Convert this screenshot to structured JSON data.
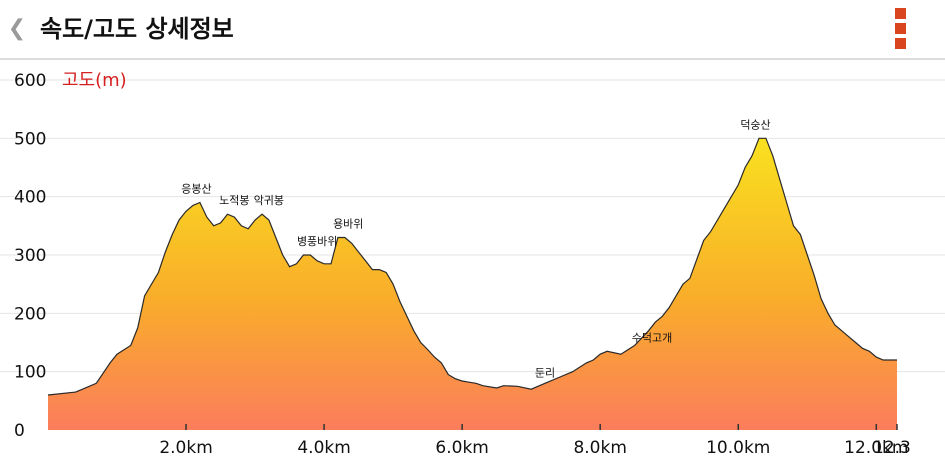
{
  "header": {
    "back_glyph": "❮",
    "title": "속도/고도 상세정보",
    "menu_icon": "more-vert-icon"
  },
  "colors": {
    "accent": "#d9451f",
    "gradient_top": "#f9e11f",
    "gradient_bottom": "#fb7d5c",
    "ylabel": "#d62020"
  },
  "chart_data": {
    "type": "area",
    "ylabel": "고도(m)",
    "xlabel": "",
    "ylim": [
      0,
      600
    ],
    "xlim": [
      0,
      12.3
    ],
    "y_ticks": [
      "600",
      "500",
      "400",
      "300",
      "200",
      "100",
      "0"
    ],
    "y_tick_values": [
      600,
      500,
      400,
      300,
      200,
      100,
      0
    ],
    "x_ticks": [
      "2.0km",
      "4.0km",
      "6.0km",
      "8.0km",
      "10.0km",
      "12.0km",
      "12.3"
    ],
    "x_tick_values": [
      2,
      4,
      6,
      8,
      10,
      12,
      12.3
    ],
    "grid": true,
    "series": [
      {
        "x": [
          0,
          0.4,
          0.5,
          0.7,
          0.9,
          1.0,
          1.2,
          1.3,
          1.4,
          1.6,
          1.7,
          1.8,
          1.9,
          2.0,
          2.1,
          2.2,
          2.3,
          2.4,
          2.5,
          2.6,
          2.7,
          2.8,
          2.9,
          3.0,
          3.1,
          3.2,
          3.3,
          3.4,
          3.5,
          3.6,
          3.7,
          3.8,
          3.9,
          4.0,
          4.1,
          4.2,
          4.3,
          4.4,
          4.5,
          4.6,
          4.7,
          4.8,
          4.9,
          5.0,
          5.1,
          5.2,
          5.3,
          5.4,
          5.5,
          5.6,
          5.7,
          5.8,
          5.9,
          6.0,
          6.1,
          6.2,
          6.3,
          6.5,
          6.6,
          6.8,
          7.0,
          7.2,
          7.4,
          7.6,
          7.8,
          7.9,
          8.0,
          8.1,
          8.3,
          8.5,
          8.7,
          8.8,
          8.9,
          9.0,
          9.1,
          9.2,
          9.3,
          9.5,
          9.6,
          9.7,
          9.8,
          9.9,
          10.0,
          10.1,
          10.2,
          10.3,
          10.4,
          10.5,
          10.6,
          10.7,
          10.8,
          10.9,
          11.0,
          11.1,
          11.2,
          11.3,
          11.4,
          11.5,
          11.6,
          11.7,
          11.8,
          11.9,
          12.0,
          12.1,
          12.2,
          12.3
        ],
        "values": [
          60,
          65,
          70,
          80,
          115,
          130,
          145,
          175,
          230,
          270,
          305,
          335,
          360,
          375,
          385,
          390,
          365,
          350,
          355,
          370,
          365,
          350,
          345,
          360,
          370,
          360,
          330,
          300,
          280,
          285,
          300,
          300,
          290,
          285,
          285,
          330,
          330,
          320,
          305,
          290,
          275,
          275,
          270,
          250,
          220,
          195,
          170,
          150,
          138,
          125,
          115,
          95,
          88,
          84,
          82,
          80,
          76,
          72,
          76,
          75,
          70,
          80,
          90,
          100,
          115,
          120,
          130,
          135,
          130,
          145,
          170,
          185,
          195,
          210,
          230,
          250,
          260,
          325,
          340,
          360,
          380,
          400,
          420,
          450,
          470,
          500,
          500,
          470,
          430,
          390,
          350,
          335,
          300,
          265,
          225,
          200,
          180,
          170,
          160,
          150,
          140,
          135,
          125,
          120,
          120,
          120
        ]
      }
    ],
    "annotations": [
      {
        "text": "응봉산",
        "x": 2.15,
        "y": 390
      },
      {
        "text": "노적봉",
        "x": 2.7,
        "y": 370
      },
      {
        "text": "악귀봉",
        "x": 3.2,
        "y": 370
      },
      {
        "text": "병풍바위",
        "x": 3.9,
        "y": 300
      },
      {
        "text": "용바위",
        "x": 4.35,
        "y": 330
      },
      {
        "text": "둔리",
        "x": 7.2,
        "y": 75
      },
      {
        "text": "수덕고개",
        "x": 8.75,
        "y": 135
      },
      {
        "text": "덕숭산",
        "x": 10.25,
        "y": 500
      }
    ]
  }
}
